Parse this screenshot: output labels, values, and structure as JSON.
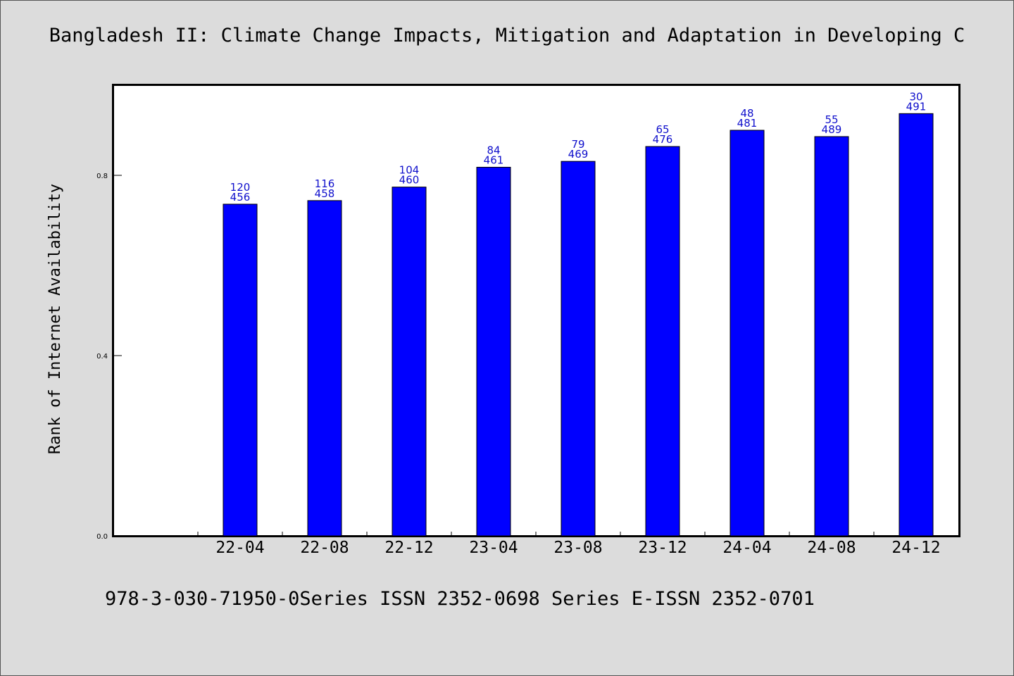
{
  "title": "Bangladesh II: Climate Change Impacts, Mitigation and Adaptation in Developing C",
  "footer": "978-3-030-71950-0Series ISSN 2352-0698 Series E-ISSN 2352-0701",
  "chart_data": {
    "type": "bar",
    "title": "Bangladesh II: Climate Change Impacts, Mitigation and Adaptation in Developing C",
    "xlabel": "",
    "ylabel": "Rank of Internet Availability",
    "categories": [
      "22-04",
      "22-08",
      "22-12",
      "23-04",
      "23-08",
      "23-12",
      "24-04",
      "24-08",
      "24-12"
    ],
    "series": [
      {
        "values": [
          0.736,
          0.744,
          0.774,
          0.818,
          0.831,
          0.864,
          0.9,
          0.886,
          0.937
        ]
      }
    ],
    "data_labels": [
      [
        "120",
        "456"
      ],
      [
        "116",
        "458"
      ],
      [
        "104",
        "460"
      ],
      [
        "84",
        "461"
      ],
      [
        "79",
        "469"
      ],
      [
        "65",
        "476"
      ],
      [
        "48",
        "481"
      ],
      [
        "55",
        "489"
      ],
      [
        "30",
        "491"
      ]
    ],
    "yticks": [
      "0.0",
      "0.4",
      "0.8"
    ],
    "ytick_values": [
      0.0,
      0.4,
      0.8
    ],
    "ylim": [
      0,
      1.0
    ],
    "grid": false,
    "legend": "none",
    "bar_color": "#0000ff",
    "label_color": "#1010cc"
  }
}
